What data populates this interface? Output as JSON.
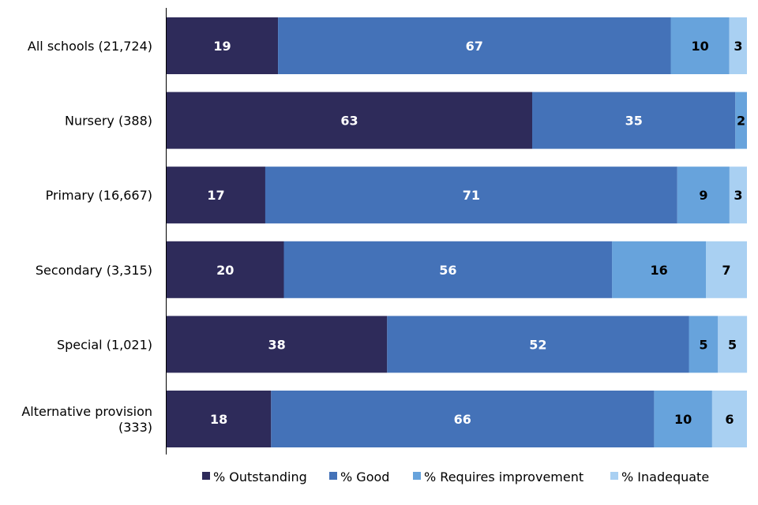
{
  "chart_data": {
    "type": "bar",
    "orientation": "horizontal",
    "stacked": true,
    "categories": [
      [
        "All schools (21,724)"
      ],
      [
        "Nursery (388)"
      ],
      [
        "Primary (16,667)"
      ],
      [
        "Secondary (3,315)"
      ],
      [
        "Special (1,021)"
      ],
      [
        "Alternative provision",
        "(333)"
      ]
    ],
    "series": [
      {
        "name": "% Outstanding",
        "color": "#2e2b5a",
        "label_color": "#ffffff",
        "values": [
          19,
          63,
          17,
          20,
          38,
          18
        ]
      },
      {
        "name": "% Good",
        "color": "#4472b8",
        "label_color": "#ffffff",
        "values": [
          67,
          35,
          71,
          56,
          52,
          66
        ]
      },
      {
        "name": "% Requires improvement",
        "color": "#67a3dc",
        "label_color": "#000000",
        "values": [
          10,
          2,
          9,
          16,
          5,
          10
        ]
      },
      {
        "name": "% Inadequate",
        "color": "#a9d0f2",
        "label_color": "#000000",
        "values": [
          3,
          0,
          3,
          7,
          5,
          6
        ]
      }
    ],
    "legend_position": "bottom",
    "grid": false
  }
}
